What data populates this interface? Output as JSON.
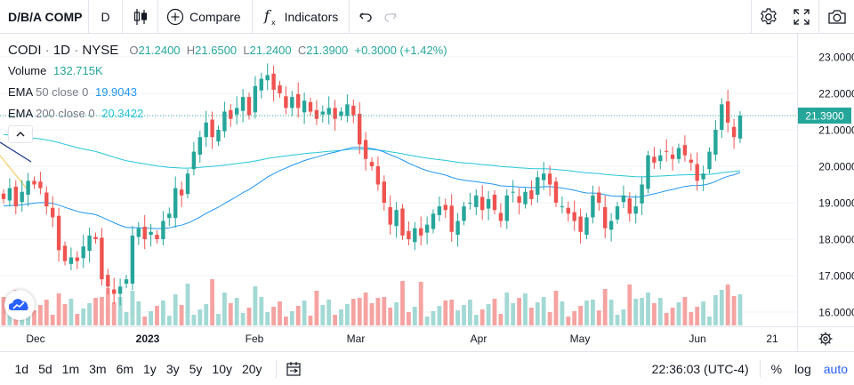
{
  "toolbar": {
    "symbol": "D/B/A COMP",
    "interval": "D",
    "compare_label": "Compare",
    "indicators_label": "Indicators"
  },
  "legend": {
    "symbol": "CODI",
    "interval": "1D",
    "exchange": "NYSE",
    "open_label": "O",
    "open": "21.2400",
    "high_label": "H",
    "high": "21.6500",
    "low_label": "L",
    "low": "21.2400",
    "close_label": "C",
    "close": "21.3900",
    "change": "+0.3000 (+1.42%)",
    "volume_label": "Volume",
    "volume": "132.715K",
    "ema50_label": "EMA",
    "ema50_params": "50 close 0",
    "ema50_value": "19.9043",
    "ema200_label": "EMA",
    "ema200_params": "200 close 0",
    "ema200_value": "20.3422"
  },
  "price_axis": {
    "ticks": [
      "23.0000",
      "22.0000",
      "21.0000",
      "20.0000",
      "19.0000",
      "18.0000",
      "17.0000",
      "16.0000"
    ],
    "last_price": "21.3900"
  },
  "time_axis": {
    "labels": [
      {
        "text": "Dec",
        "bold": false
      },
      {
        "text": "2023",
        "bold": true
      },
      {
        "text": "Feb",
        "bold": false
      },
      {
        "text": "Mar",
        "bold": false
      },
      {
        "text": "Apr",
        "bold": false
      },
      {
        "text": "May",
        "bold": false
      },
      {
        "text": "Jun",
        "bold": false
      },
      {
        "text": "21",
        "bold": false
      }
    ]
  },
  "bottom_bar": {
    "ranges": [
      "1d",
      "5d",
      "1m",
      "3m",
      "6m",
      "1y",
      "3y",
      "5y",
      "10y",
      "20y"
    ],
    "time": "22:36:03 (UTC-4)",
    "percent": "%",
    "log": "log",
    "auto": "auto"
  },
  "colors": {
    "up": "#26a69a",
    "down": "#ef5350",
    "ema50": "#2196f3",
    "ema200": "#26c6da",
    "accent": "#2962ff"
  },
  "icons": [
    "candles-icon",
    "plus-circle-icon",
    "fx-icon",
    "undo-icon",
    "redo-icon",
    "gear-icon",
    "fullscreen-icon",
    "camera-icon",
    "chevron-up-icon",
    "tradingview-logo-icon",
    "date-range-icon",
    "axis-settings-icon"
  ],
  "chart_data": {
    "type": "candlestick",
    "ylim": [
      15.7,
      23.5
    ],
    "ohlc_close_by_day": [
      19.1,
      19.4,
      18.9,
      19.3,
      19.6,
      19.5,
      19.4,
      18.9,
      18.6,
      17.7,
      17.4,
      17.5,
      17.4,
      17.8,
      18.1,
      18.0,
      16.9,
      16.7,
      16.5,
      16.7,
      16.9,
      18.1,
      18.3,
      18.0,
      18.2,
      18.0,
      18.5,
      18.7,
      19.4,
      19.2,
      19.8,
      20.4,
      20.8,
      21.2,
      20.8,
      21.0,
      21.5,
      21.3,
      21.6,
      21.9,
      21.4,
      22.2,
      22.4,
      22.5,
      22.1,
      22.0,
      21.6,
      21.9,
      21.6,
      21.8,
      21.5,
      21.3,
      21.5,
      21.6,
      21.3,
      21.5,
      21.7,
      21.4,
      20.6,
      20.2,
      20.0,
      19.5,
      19.0,
      18.4,
      18.8,
      18.1,
      18.0,
      18.3,
      18.1,
      18.4,
      18.7,
      18.9,
      18.8,
      18.2,
      18.5,
      18.9,
      19.0,
      19.2,
      18.8,
      19.1,
      18.8,
      18.5,
      19.2,
      19.3,
      19.0,
      19.3,
      19.1,
      19.7,
      19.8,
      19.5,
      19.0,
      18.9,
      18.7,
      18.5,
      18.2,
      18.6,
      19.2,
      19.0,
      18.3,
      18.5,
      18.9,
      19.2,
      18.7,
      18.9,
      19.5,
      20.3,
      20.1,
      20.3,
      20.4,
      20.2,
      20.5,
      20.3,
      20.1,
      19.6,
      19.8,
      20.4,
      21.0,
      21.7,
      21.2,
      20.8,
      21.39
    ],
    "series": [
      {
        "name": "EMA 50 close 0",
        "last": 19.9043
      },
      {
        "name": "EMA 200 close 0",
        "last": 20.3422
      }
    ]
  }
}
